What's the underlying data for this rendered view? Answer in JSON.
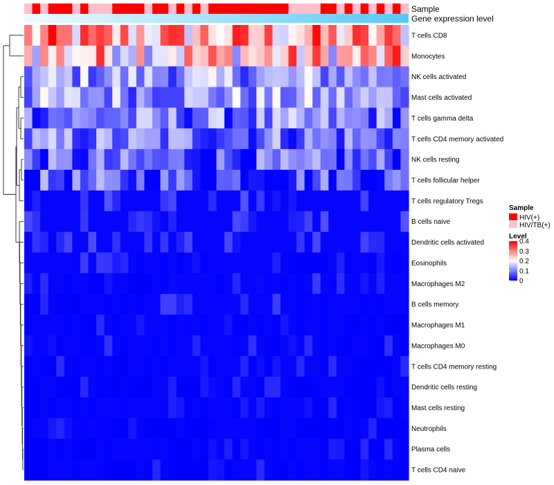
{
  "chart_data": {
    "type": "heatmap",
    "title": "",
    "annotation_tracks": [
      {
        "name": "Sample"
      },
      {
        "name": "Gene expression level"
      }
    ],
    "legend_sample": {
      "title": "Sample",
      "entries": [
        {
          "label": "HIV(+)",
          "color": "#ff0000"
        },
        {
          "label": "HIV/TB(+)",
          "color": "#ffc0cb"
        }
      ]
    },
    "legend_level": {
      "title": "Level",
      "ticks": [
        {
          "label": "0.4",
          "value": 0.4
        },
        {
          "label": "0.3",
          "value": 0.3
        },
        {
          "label": "0.2",
          "value": 0.2
        },
        {
          "label": "0.1",
          "value": 0.1
        },
        {
          "label": "0",
          "value": 0.0
        }
      ],
      "min": 0,
      "mid": 0.2,
      "max": 0.4,
      "colors": {
        "low": "#0000ff",
        "mid": "#ffffff",
        "high": "#ff0000"
      }
    },
    "sample_groups": [
      "B",
      "A",
      "B",
      "A",
      "A",
      "A",
      "B",
      "A",
      "B",
      "B",
      "B",
      "A",
      "A",
      "A",
      "A",
      "B",
      "A",
      "A",
      "B",
      "A",
      "B",
      "A",
      "B",
      "A",
      "A",
      "A",
      "A",
      "A",
      "A",
      "A",
      "A",
      "A",
      "A",
      "B",
      "B",
      "B",
      "B",
      "A",
      "A",
      "B",
      "A",
      "B",
      "A",
      "B",
      "A",
      "B",
      "A",
      "B"
    ],
    "gene_expression_gradient": {
      "from": "#f2fbfe",
      "to": "#56c8f3"
    },
    "rows": [
      "T cells CD8",
      "Monocytes",
      "NK cells activated",
      "Mast cells activated",
      "T cells gamma delta",
      "T cells CD4 memory activated",
      "NK cells resting",
      "T cells follicular helper",
      "T cells regulatory  Tregs",
      "B cells naive",
      "Dendritic cells activated",
      "Eosinophils",
      "Macrophages M2",
      "B cells memory",
      "Macrophages M1",
      "Macrophages M0",
      "T cells CD4 memory resting",
      "Dendritic cells resting",
      "Mast cells resting",
      "Neutrophils",
      "Plasma cells",
      "T cells CD4 naive"
    ],
    "row_levels": [
      0.26,
      0.24,
      0.12,
      0.12,
      0.09,
      0.09,
      0.06,
      0.06,
      0.04,
      0.04,
      0.03,
      0.02,
      0.02,
      0.02,
      0.01,
      0.01,
      0.01,
      0.005,
      0.005,
      0.0,
      0.005,
      0.005
    ],
    "n_columns": 48,
    "dendrogram": "hierarchical clustering of rows"
  }
}
